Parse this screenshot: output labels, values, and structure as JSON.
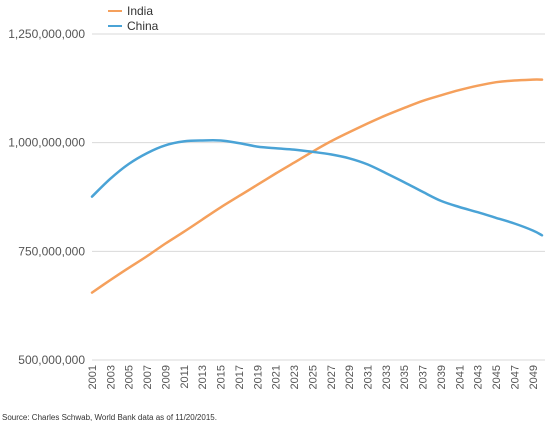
{
  "chart_data": {
    "type": "line",
    "title": "",
    "xlabel": "",
    "ylabel": "",
    "ylim": [
      500000000,
      1250000000
    ],
    "yticks": [
      {
        "value": 500000000,
        "label": "500,000,000"
      },
      {
        "value": 750000000,
        "label": "750,000,000"
      },
      {
        "value": 1000000000,
        "label": "1,000,000,000"
      },
      {
        "value": 1250000000,
        "label": "1,250,000,000"
      }
    ],
    "xlim": [
      2001,
      2050
    ],
    "x_tick_labels": [
      "2001",
      "2003",
      "2005",
      "2007",
      "2009",
      "2011",
      "2013",
      "2015",
      "2017",
      "2019",
      "2021",
      "2023",
      "2025",
      "2027",
      "2029",
      "2031",
      "2033",
      "2035",
      "2037",
      "2039",
      "2041",
      "2043",
      "2045",
      "2047",
      "2049"
    ],
    "gridlines": "horizontal",
    "legend_position": "top-left",
    "series": [
      {
        "name": "India",
        "color": "#f5a05c",
        "x": [
          2001,
          2003,
          2005,
          2007,
          2009,
          2011,
          2013,
          2015,
          2017,
          2019,
          2021,
          2023,
          2025,
          2027,
          2029,
          2031,
          2033,
          2035,
          2037,
          2039,
          2041,
          2043,
          2045,
          2047,
          2049,
          2050
        ],
        "values": [
          655000000,
          684000000,
          712000000,
          739000000,
          768000000,
          795000000,
          823000000,
          851000000,
          877000000,
          903000000,
          929000000,
          954000000,
          979000000,
          1003000000,
          1024000000,
          1044000000,
          1063000000,
          1080000000,
          1096000000,
          1109000000,
          1121000000,
          1131000000,
          1139000000,
          1143000000,
          1145000000,
          1145000000
        ]
      },
      {
        "name": "China",
        "color": "#4aa3d6",
        "x": [
          2001,
          2003,
          2005,
          2007,
          2009,
          2011,
          2013,
          2015,
          2017,
          2019,
          2021,
          2023,
          2025,
          2027,
          2029,
          2031,
          2033,
          2035,
          2037,
          2039,
          2041,
          2043,
          2045,
          2047,
          2049,
          2050
        ],
        "values": [
          876000000,
          917000000,
          951000000,
          976000000,
          994000000,
          1003000000,
          1005000000,
          1005000000,
          999000000,
          991000000,
          987000000,
          984000000,
          979000000,
          973000000,
          964000000,
          950000000,
          930000000,
          909000000,
          887000000,
          866000000,
          852000000,
          840000000,
          827000000,
          814000000,
          798000000,
          787000000
        ]
      }
    ]
  },
  "source_note": "Source: Charles Schwab, World Bank data as of 11/20/2015."
}
